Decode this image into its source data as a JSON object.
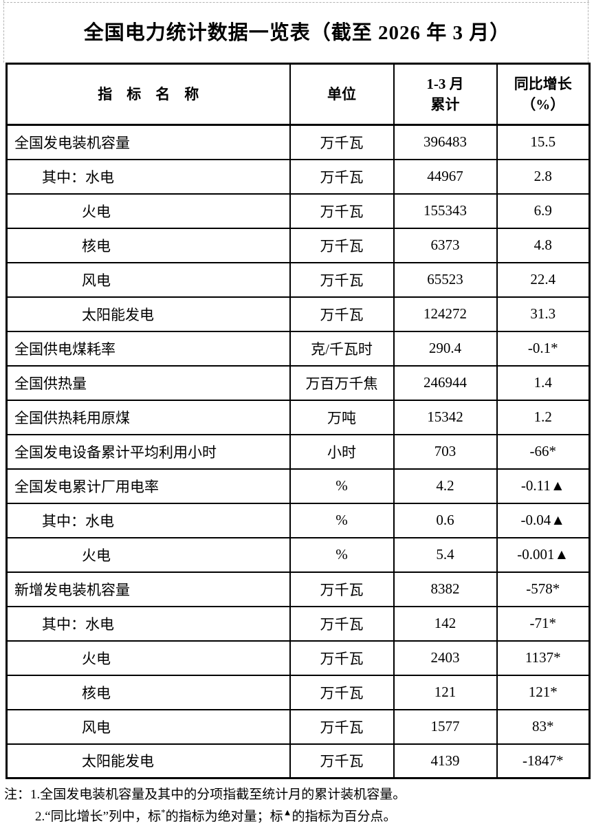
{
  "page": {
    "title": "全国电力统计数据一览表（截至 2026 年 3 月）"
  },
  "table": {
    "headers": {
      "name": "指　标　名　称",
      "unit": "单位",
      "period_line1": "1-3 月",
      "period_line2": "累计",
      "growth_line1": "同比增长",
      "growth_line2": "（%）"
    },
    "rows": [
      {
        "name": "全国发电装机容量",
        "indent": 0,
        "unit": "万千瓦",
        "value": "396483",
        "growth": "15.5"
      },
      {
        "name": "其中：水电",
        "indent": 1,
        "unit": "万千瓦",
        "value": "44967",
        "growth": "2.8"
      },
      {
        "name": "火电",
        "indent": 2,
        "unit": "万千瓦",
        "value": "155343",
        "growth": "6.9"
      },
      {
        "name": "核电",
        "indent": 2,
        "unit": "万千瓦",
        "value": "6373",
        "growth": "4.8"
      },
      {
        "name": "风电",
        "indent": 2,
        "unit": "万千瓦",
        "value": "65523",
        "growth": "22.4"
      },
      {
        "name": "太阳能发电",
        "indent": 2,
        "unit": "万千瓦",
        "value": "124272",
        "growth": "31.3"
      },
      {
        "name": "全国供电煤耗率",
        "indent": 0,
        "unit": "克/千瓦时",
        "value": "290.4",
        "growth": "-0.1*"
      },
      {
        "name": "全国供热量",
        "indent": 0,
        "unit": "万百万千焦",
        "value": "246944",
        "growth": "1.4"
      },
      {
        "name": "全国供热耗用原煤",
        "indent": 0,
        "unit": "万吨",
        "value": "15342",
        "growth": "1.2"
      },
      {
        "name": "全国发电设备累计平均利用小时",
        "indent": 0,
        "unit": "小时",
        "value": "703",
        "growth": "-66*"
      },
      {
        "name": "全国发电累计厂用电率",
        "indent": 0,
        "unit": "%",
        "value": "4.2",
        "growth": "-0.11▲"
      },
      {
        "name": "其中：水电",
        "indent": 1,
        "unit": "%",
        "value": "0.6",
        "growth": "-0.04▲"
      },
      {
        "name": "火电",
        "indent": 2,
        "unit": "%",
        "value": "5.4",
        "growth": "-0.001▲"
      },
      {
        "name": "新增发电装机容量",
        "indent": 0,
        "unit": "万千瓦",
        "value": "8382",
        "growth": "-578*"
      },
      {
        "name": "其中：水电",
        "indent": 1,
        "unit": "万千瓦",
        "value": "142",
        "growth": "-71*"
      },
      {
        "name": "火电",
        "indent": 2,
        "unit": "万千瓦",
        "value": "2403",
        "growth": "1137*"
      },
      {
        "name": "核电",
        "indent": 2,
        "unit": "万千瓦",
        "value": "121",
        "growth": "121*"
      },
      {
        "name": "风电",
        "indent": 2,
        "unit": "万千瓦",
        "value": "1577",
        "growth": "83*"
      },
      {
        "name": "太阳能发电",
        "indent": 2,
        "unit": "万千瓦",
        "value": "4139",
        "growth": "-1847*"
      }
    ]
  },
  "notes": {
    "line1": "注：1.全国发电装机容量及其中的分项指截至统计月的累计装机容量。",
    "line2_prefix": "2.“同比增长”列中，标",
    "line2_sup1": "*",
    "line2_mid": "的指标为绝对量；标",
    "line2_sup2": "▲",
    "line2_suffix": "的指标为百分点。"
  }
}
